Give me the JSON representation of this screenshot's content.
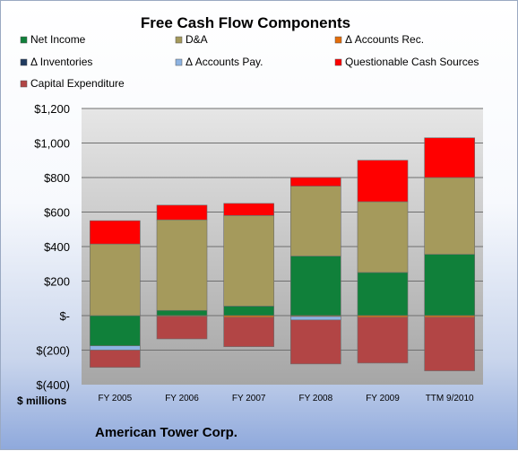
{
  "chart_data": {
    "type": "bar",
    "stacked": true,
    "title": "Free Cash Flow Components",
    "ylabel": "$ millions",
    "footer": "American Tower Corp.",
    "categories": [
      "FY 2005",
      "FY 2006",
      "FY 2007",
      "FY 2008",
      "FY 2009",
      "TTM 9/2010"
    ],
    "y_ticks": [
      "$1,200",
      "$1,000",
      "$800",
      "$600",
      "$400",
      "$200",
      "$-",
      "$(200)",
      "$(400)"
    ],
    "ylim": [
      -400,
      1200
    ],
    "grid": true,
    "legend_position": "top",
    "series": [
      {
        "name": "Net Income",
        "color": "#10803a",
        "values": [
          -175,
          30,
          55,
          345,
          250,
          355
        ]
      },
      {
        "name": "D&A",
        "color": "#a59a5c",
        "values": [
          415,
          525,
          525,
          405,
          410,
          445
        ]
      },
      {
        "name": "Δ Accounts Rec.",
        "color": "#e46d0a",
        "values": [
          0,
          -5,
          -10,
          -5,
          -10,
          -10
        ]
      },
      {
        "name": "Δ Inventories",
        "color": "#1f3a5f",
        "values": [
          0,
          0,
          0,
          0,
          0,
          0
        ]
      },
      {
        "name": "Δ Accounts Pay.",
        "color": "#8db3e2",
        "values": [
          -25,
          0,
          0,
          -20,
          0,
          0
        ]
      },
      {
        "name": "Questionable Cash Sources",
        "color": "#ff0000",
        "values": [
          135,
          85,
          70,
          50,
          240,
          230
        ]
      },
      {
        "name": "Capital Expenditure",
        "color": "#b24545",
        "values": [
          -100,
          -130,
          -170,
          -255,
          -265,
          -310
        ]
      }
    ]
  }
}
